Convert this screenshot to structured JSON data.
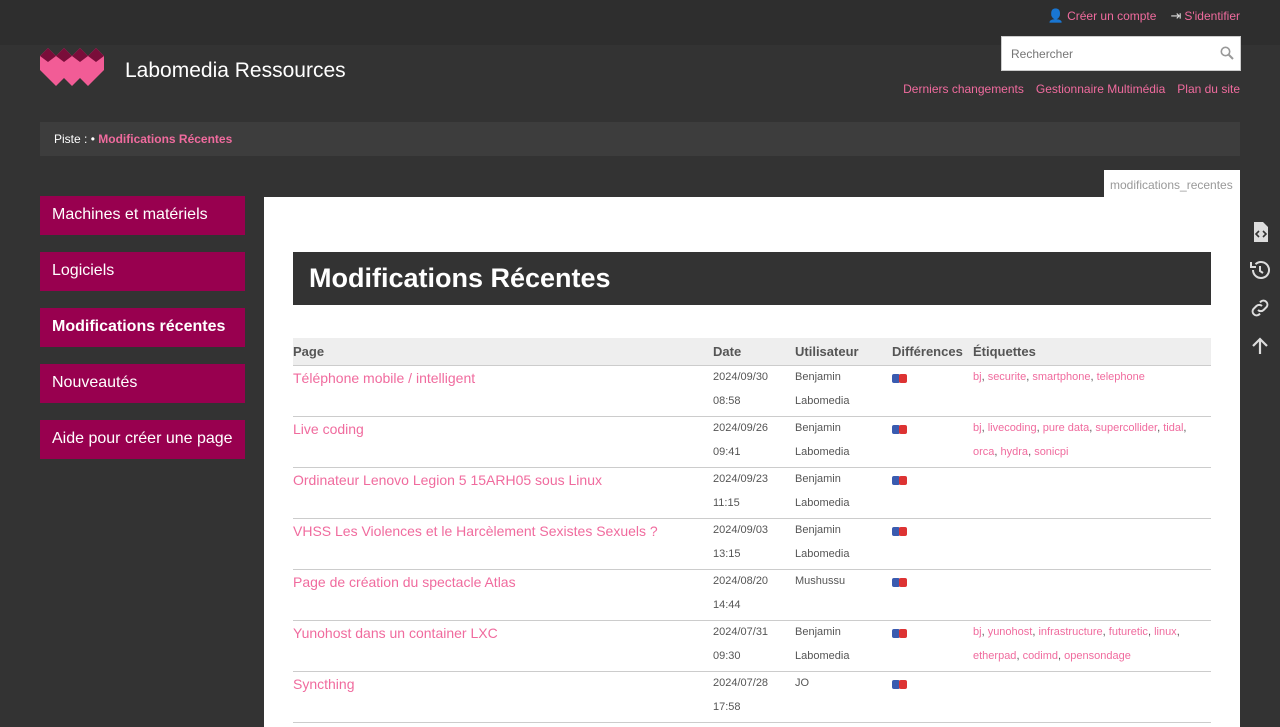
{
  "user_tools": [
    {
      "label": "Créer un compte",
      "icon": "user-plus-icon"
    },
    {
      "label": "S'identifier",
      "icon": "login-icon"
    }
  ],
  "site_title": "Labomedia Ressources",
  "search": {
    "placeholder": "Rechercher",
    "value": ""
  },
  "site_tools": [
    "Derniers changements",
    "Gestionnaire Multimédia",
    "Plan du site"
  ],
  "breadcrumb": {
    "label": "Piste :",
    "separator": "•",
    "current": "Modifications Récentes"
  },
  "sidebar": [
    "Machines et matériels",
    "Logiciels",
    "Modifications récentes",
    "Nouveautés",
    "Aide pour créer une page"
  ],
  "sidebar_current": 2,
  "page_id": "modifications_recentes",
  "title": "Modifications Récentes",
  "table": {
    "headers": [
      "Page",
      "Date",
      "Utilisateur",
      "Différences",
      "Étiquettes"
    ],
    "rows": [
      {
        "page": "Téléphone mobile / intelligent",
        "date": "2024/09/30",
        "time": "08:58",
        "user": [
          "Benjamin",
          "Labomedia"
        ],
        "tags": [
          "bj",
          "securite",
          "smartphone",
          "telephone"
        ]
      },
      {
        "page": "Live coding",
        "date": "2024/09/26",
        "time": "09:41",
        "user": [
          "Benjamin",
          "Labomedia"
        ],
        "tags": [
          "bj",
          "livecoding",
          "pure data",
          "supercollider",
          "tidal",
          "orca",
          "hydra",
          "sonicpi"
        ]
      },
      {
        "page": "Ordinateur Lenovo Legion 5 15ARH05 sous Linux",
        "date": "2024/09/23",
        "time": "11:15",
        "user": [
          "Benjamin",
          "Labomedia"
        ],
        "tags": []
      },
      {
        "page": "VHSS Les Violences et le Harcèlement Sexistes Sexuels ?",
        "date": "2024/09/03",
        "time": "13:15",
        "user": [
          "Benjamin",
          "Labomedia"
        ],
        "tags": []
      },
      {
        "page": "Page de création du spectacle Atlas",
        "date": "2024/08/20",
        "time": "14:44",
        "user": [
          "Mushussu"
        ],
        "tags": []
      },
      {
        "page": "Yunohost dans un container LXC",
        "date": "2024/07/31",
        "time": "09:30",
        "user": [
          "Benjamin",
          "Labomedia"
        ],
        "tags": [
          "bj",
          "yunohost",
          "infrastructure",
          "futuretic",
          "linux",
          "etherpad",
          "codimd",
          "opensondage"
        ]
      },
      {
        "page": "Syncthing",
        "date": "2024/07/28",
        "time": "17:58",
        "user": [
          "JO"
        ],
        "tags": []
      }
    ]
  },
  "page_tools": [
    "show-source-icon",
    "old-revisions-icon",
    "backlinks-icon",
    "back-to-top-icon"
  ],
  "colors": {
    "accent": "#f06b9e",
    "sidebar": "#98004f",
    "background": "#333333"
  }
}
